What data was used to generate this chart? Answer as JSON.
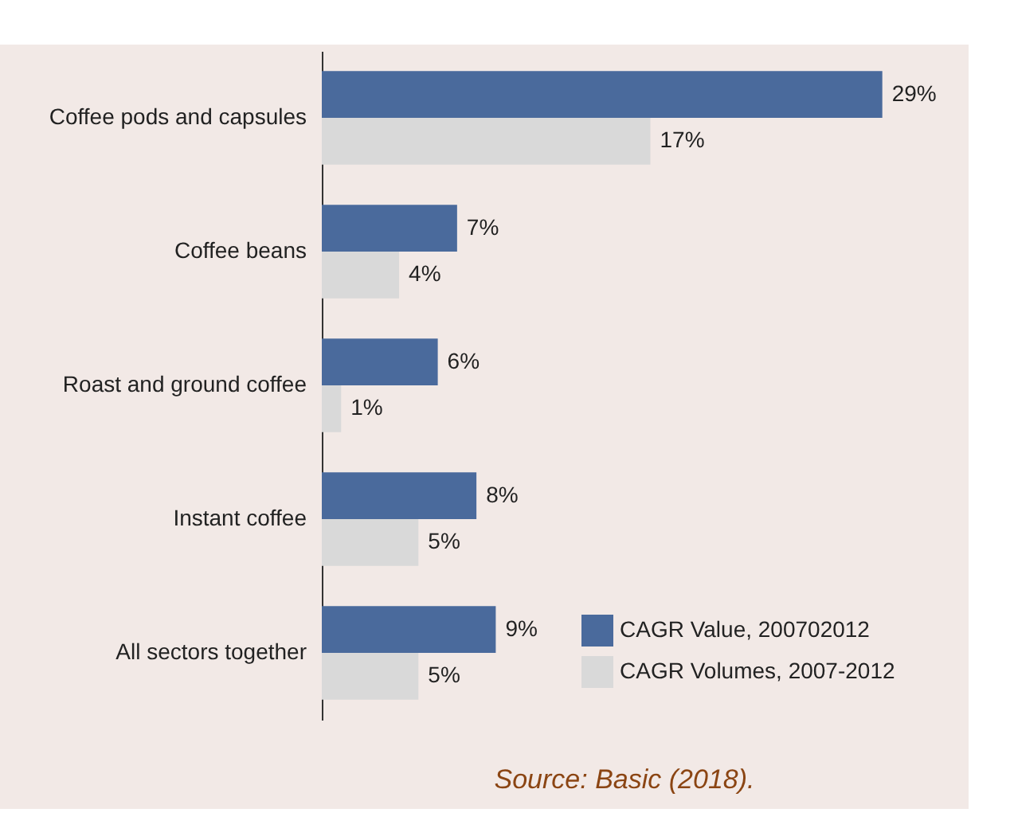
{
  "chart_data": {
    "type": "bar",
    "orientation": "horizontal",
    "categories": [
      "Coffee pods and capsules",
      "Coffee beans",
      "Roast and ground coffee",
      "Instant coffee",
      "All sectors together"
    ],
    "series": [
      {
        "name": "CAGR Value, 200702012",
        "color": "#4a6a9c",
        "values": [
          29,
          7,
          6,
          8,
          9
        ],
        "value_labels": [
          "29%",
          "7%",
          "6%",
          "8%",
          "9%"
        ]
      },
      {
        "name": "CAGR Volumes, 2007-2012",
        "color": "#d9d9d9",
        "values": [
          17,
          4,
          1,
          5,
          5
        ],
        "value_labels": [
          "17%",
          "4%",
          "1%",
          "5%",
          "5%"
        ]
      }
    ],
    "legend": "bottom right",
    "annotations": [
      "Source: Basic (2018)."
    ]
  }
}
